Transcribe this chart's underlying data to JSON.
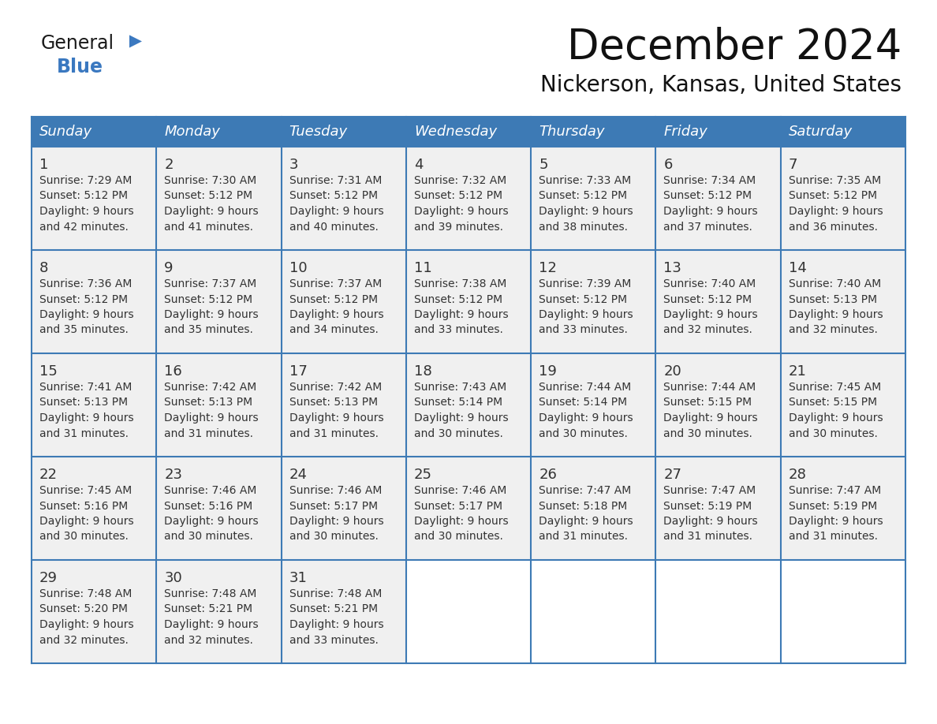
{
  "title": "December 2024",
  "subtitle": "Nickerson, Kansas, United States",
  "days_of_week": [
    "Sunday",
    "Monday",
    "Tuesday",
    "Wednesday",
    "Thursday",
    "Friday",
    "Saturday"
  ],
  "header_bg_color": "#3d7ab5",
  "header_text_color": "#ffffff",
  "cell_bg_color": "#f0f0f0",
  "empty_cell_bg_color": "#ffffff",
  "grid_line_color": "#3d7ab5",
  "day_number_color": "#333333",
  "cell_text_color": "#333333",
  "title_color": "#111111",
  "logo_general_color": "#1a1a1a",
  "logo_blue_color": "#3a78c0",
  "logo_triangle_color": "#3a78c0",
  "calendar_data": [
    [
      {
        "day": 1,
        "sunrise": "7:29 AM",
        "sunset": "5:12 PM",
        "daylight_hours": 9,
        "daylight_minutes": 42
      },
      {
        "day": 2,
        "sunrise": "7:30 AM",
        "sunset": "5:12 PM",
        "daylight_hours": 9,
        "daylight_minutes": 41
      },
      {
        "day": 3,
        "sunrise": "7:31 AM",
        "sunset": "5:12 PM",
        "daylight_hours": 9,
        "daylight_minutes": 40
      },
      {
        "day": 4,
        "sunrise": "7:32 AM",
        "sunset": "5:12 PM",
        "daylight_hours": 9,
        "daylight_minutes": 39
      },
      {
        "day": 5,
        "sunrise": "7:33 AM",
        "sunset": "5:12 PM",
        "daylight_hours": 9,
        "daylight_minutes": 38
      },
      {
        "day": 6,
        "sunrise": "7:34 AM",
        "sunset": "5:12 PM",
        "daylight_hours": 9,
        "daylight_minutes": 37
      },
      {
        "day": 7,
        "sunrise": "7:35 AM",
        "sunset": "5:12 PM",
        "daylight_hours": 9,
        "daylight_minutes": 36
      }
    ],
    [
      {
        "day": 8,
        "sunrise": "7:36 AM",
        "sunset": "5:12 PM",
        "daylight_hours": 9,
        "daylight_minutes": 35
      },
      {
        "day": 9,
        "sunrise": "7:37 AM",
        "sunset": "5:12 PM",
        "daylight_hours": 9,
        "daylight_minutes": 35
      },
      {
        "day": 10,
        "sunrise": "7:37 AM",
        "sunset": "5:12 PM",
        "daylight_hours": 9,
        "daylight_minutes": 34
      },
      {
        "day": 11,
        "sunrise": "7:38 AM",
        "sunset": "5:12 PM",
        "daylight_hours": 9,
        "daylight_minutes": 33
      },
      {
        "day": 12,
        "sunrise": "7:39 AM",
        "sunset": "5:12 PM",
        "daylight_hours": 9,
        "daylight_minutes": 33
      },
      {
        "day": 13,
        "sunrise": "7:40 AM",
        "sunset": "5:12 PM",
        "daylight_hours": 9,
        "daylight_minutes": 32
      },
      {
        "day": 14,
        "sunrise": "7:40 AM",
        "sunset": "5:13 PM",
        "daylight_hours": 9,
        "daylight_minutes": 32
      }
    ],
    [
      {
        "day": 15,
        "sunrise": "7:41 AM",
        "sunset": "5:13 PM",
        "daylight_hours": 9,
        "daylight_minutes": 31
      },
      {
        "day": 16,
        "sunrise": "7:42 AM",
        "sunset": "5:13 PM",
        "daylight_hours": 9,
        "daylight_minutes": 31
      },
      {
        "day": 17,
        "sunrise": "7:42 AM",
        "sunset": "5:13 PM",
        "daylight_hours": 9,
        "daylight_minutes": 31
      },
      {
        "day": 18,
        "sunrise": "7:43 AM",
        "sunset": "5:14 PM",
        "daylight_hours": 9,
        "daylight_minutes": 30
      },
      {
        "day": 19,
        "sunrise": "7:44 AM",
        "sunset": "5:14 PM",
        "daylight_hours": 9,
        "daylight_minutes": 30
      },
      {
        "day": 20,
        "sunrise": "7:44 AM",
        "sunset": "5:15 PM",
        "daylight_hours": 9,
        "daylight_minutes": 30
      },
      {
        "day": 21,
        "sunrise": "7:45 AM",
        "sunset": "5:15 PM",
        "daylight_hours": 9,
        "daylight_minutes": 30
      }
    ],
    [
      {
        "day": 22,
        "sunrise": "7:45 AM",
        "sunset": "5:16 PM",
        "daylight_hours": 9,
        "daylight_minutes": 30
      },
      {
        "day": 23,
        "sunrise": "7:46 AM",
        "sunset": "5:16 PM",
        "daylight_hours": 9,
        "daylight_minutes": 30
      },
      {
        "day": 24,
        "sunrise": "7:46 AM",
        "sunset": "5:17 PM",
        "daylight_hours": 9,
        "daylight_minutes": 30
      },
      {
        "day": 25,
        "sunrise": "7:46 AM",
        "sunset": "5:17 PM",
        "daylight_hours": 9,
        "daylight_minutes": 30
      },
      {
        "day": 26,
        "sunrise": "7:47 AM",
        "sunset": "5:18 PM",
        "daylight_hours": 9,
        "daylight_minutes": 31
      },
      {
        "day": 27,
        "sunrise": "7:47 AM",
        "sunset": "5:19 PM",
        "daylight_hours": 9,
        "daylight_minutes": 31
      },
      {
        "day": 28,
        "sunrise": "7:47 AM",
        "sunset": "5:19 PM",
        "daylight_hours": 9,
        "daylight_minutes": 31
      }
    ],
    [
      {
        "day": 29,
        "sunrise": "7:48 AM",
        "sunset": "5:20 PM",
        "daylight_hours": 9,
        "daylight_minutes": 32
      },
      {
        "day": 30,
        "sunrise": "7:48 AM",
        "sunset": "5:21 PM",
        "daylight_hours": 9,
        "daylight_minutes": 32
      },
      {
        "day": 31,
        "sunrise": "7:48 AM",
        "sunset": "5:21 PM",
        "daylight_hours": 9,
        "daylight_minutes": 33
      },
      null,
      null,
      null,
      null
    ]
  ]
}
